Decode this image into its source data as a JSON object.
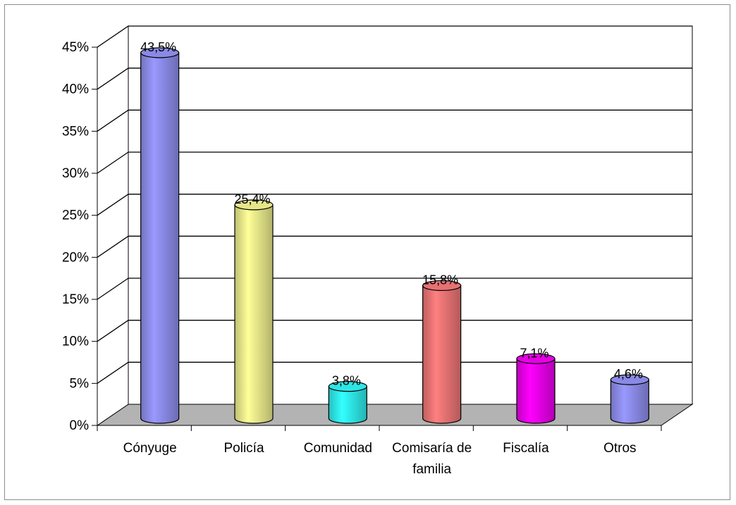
{
  "chart_data": {
    "type": "bar",
    "style": "3d-cylinder",
    "categories": [
      "Cónyuge",
      "Policía",
      "Comunidad",
      "Comisaría de familia",
      "Fiscalía",
      "Otros"
    ],
    "category_label_lines": [
      [
        "Cónyuge"
      ],
      [
        "Policía"
      ],
      [
        "Comunidad"
      ],
      [
        "Comisaría de",
        "familia"
      ],
      [
        "Fiscalía"
      ],
      [
        "Otros"
      ]
    ],
    "values": [
      43.5,
      25.4,
      3.8,
      15.8,
      7.1,
      4.6
    ],
    "data_labels": [
      "43,5%",
      "25,4%",
      "3,8%",
      "15,8%",
      "7,1%",
      "4,6%"
    ],
    "bar_colors": [
      "#9999ff",
      "#ffff99",
      "#33ffff",
      "#ff7f7f",
      "#ff00ff",
      "#9999ff"
    ],
    "y_ticks": [
      0,
      5,
      10,
      15,
      20,
      25,
      30,
      35,
      40,
      45
    ],
    "y_tick_labels": [
      "0%",
      "5%",
      "10%",
      "15%",
      "20%",
      "25%",
      "30%",
      "35%",
      "40%",
      "45%"
    ],
    "ylim": [
      0,
      45
    ],
    "grid": true,
    "legend": "none",
    "title": "",
    "xlabel": "",
    "ylabel": ""
  }
}
